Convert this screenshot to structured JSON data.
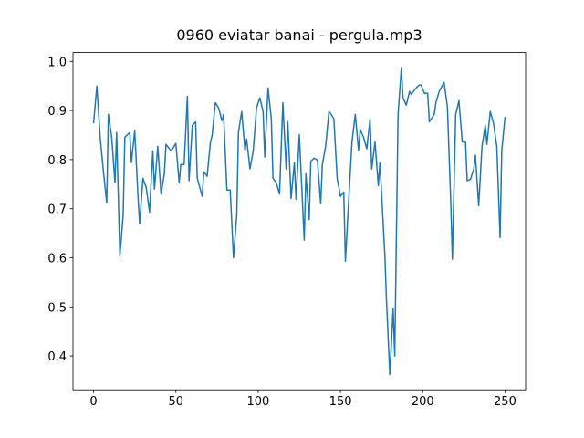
{
  "chart_data": {
    "type": "line",
    "title": "0960 eviatar banai - pergula.mp3",
    "x": [
      0,
      2,
      4,
      6,
      8,
      9,
      11,
      13,
      14,
      16,
      18,
      19,
      22,
      23,
      25,
      27,
      28,
      30,
      32,
      34,
      36,
      37,
      39,
      41,
      43,
      44,
      47,
      48,
      50,
      52,
      53,
      55,
      57,
      58,
      60,
      62,
      63,
      66,
      67,
      69,
      71,
      72,
      74,
      76,
      78,
      79,
      81,
      83,
      85,
      87,
      88,
      90,
      92,
      93,
      95,
      97,
      99,
      101,
      103,
      104,
      106,
      108,
      109,
      111,
      113,
      115,
      117,
      118,
      120,
      122,
      123,
      125,
      128,
      129,
      131,
      132,
      134,
      136,
      138,
      139,
      141,
      143,
      144,
      146,
      148,
      150,
      152,
      153,
      155,
      157,
      159,
      161,
      162,
      164,
      166,
      168,
      169,
      171,
      173,
      174,
      177,
      178,
      180,
      182,
      183,
      185,
      187,
      188,
      190,
      192,
      193,
      196,
      198,
      199,
      201,
      203,
      204,
      207,
      208,
      210,
      212,
      213,
      215,
      217,
      218,
      220,
      222,
      224,
      226,
      227,
      229,
      231,
      232,
      234,
      236,
      238,
      239,
      241,
      243,
      245,
      247,
      248,
      250
    ],
    "values": [
      0.874,
      0.95,
      0.846,
      0.775,
      0.712,
      0.892,
      0.846,
      0.753,
      0.855,
      0.604,
      0.688,
      0.846,
      0.855,
      0.794,
      0.859,
      0.725,
      0.669,
      0.762,
      0.743,
      0.693,
      0.818,
      0.74,
      0.827,
      0.73,
      0.771,
      0.831,
      0.818,
      0.822,
      0.833,
      0.753,
      0.79,
      0.79,
      0.929,
      0.757,
      0.87,
      0.877,
      0.762,
      0.725,
      0.775,
      0.766,
      0.836,
      0.849,
      0.916,
      0.905,
      0.879,
      0.892,
      0.738,
      0.738,
      0.6,
      0.688,
      0.855,
      0.898,
      0.818,
      0.842,
      0.781,
      0.818,
      0.905,
      0.926,
      0.898,
      0.805,
      0.946,
      0.883,
      0.762,
      0.753,
      0.73,
      0.916,
      0.781,
      0.877,
      0.721,
      0.794,
      0.719,
      0.851,
      0.636,
      0.771,
      0.678,
      0.797,
      0.803,
      0.799,
      0.71,
      0.79,
      0.827,
      0.898,
      0.894,
      0.883,
      0.762,
      0.725,
      0.734,
      0.593,
      0.716,
      0.836,
      0.892,
      0.818,
      0.861,
      0.846,
      0.822,
      0.883,
      0.781,
      0.836,
      0.747,
      0.794,
      0.604,
      0.511,
      0.362,
      0.496,
      0.4,
      0.892,
      0.987,
      0.926,
      0.911,
      0.939,
      0.933,
      0.946,
      0.952,
      0.952,
      0.935,
      0.935,
      0.877,
      0.892,
      0.916,
      0.939,
      0.952,
      0.957,
      0.907,
      0.716,
      0.597,
      0.892,
      0.92,
      0.836,
      0.836,
      0.757,
      0.76,
      0.781,
      0.809,
      0.706,
      0.827,
      0.87,
      0.831,
      0.898,
      0.874,
      0.827,
      0.641,
      0.818,
      0.887
    ],
    "color": "#1f77b4",
    "xlim": [
      -12.5,
      262.5
    ],
    "xticks": [
      0,
      50,
      100,
      150,
      200,
      250
    ],
    "ylim": [
      0.331,
      1.018
    ],
    "yticks": [
      0.4,
      0.5,
      0.6,
      0.7,
      0.8,
      0.9,
      {
        "value": 1.0,
        "label": "1.0"
      }
    ],
    "grid": false
  }
}
